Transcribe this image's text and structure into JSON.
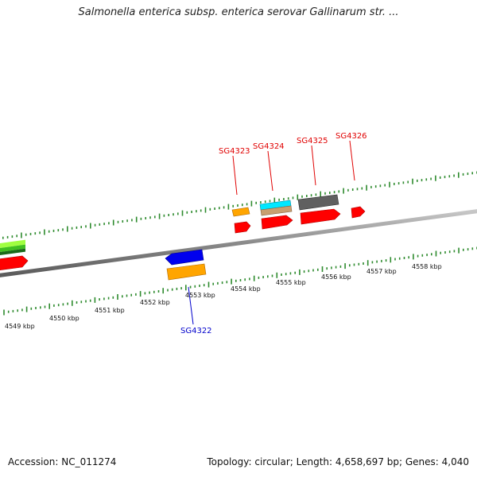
{
  "title": "Salmonella enterica subsp. enterica serovar Gallinarum str. ...",
  "accession": "Accession: NC_011274",
  "stats": "Topology: circular; Length: 4,658,697 bp; Genes: 4,040",
  "colors": {
    "backbone": "#8a8a8a",
    "tick": "#2e8b2e",
    "label_plus": "#e00000",
    "label_minus": "#0000cc"
  },
  "kbp_labels": [
    "4549 kbp",
    "4550 kbp",
    "4551 kbp",
    "4552 kbp",
    "4553 kbp",
    "4554 kbp",
    "4555 kbp",
    "4556 kbp",
    "4557 kbp",
    "4558 kbp"
  ],
  "gene_labels": [
    {
      "name": "SG4322",
      "strand": "minus"
    },
    {
      "name": "SG4323",
      "strand": "plus"
    },
    {
      "name": "SG4324",
      "strand": "plus"
    },
    {
      "name": "SG4325",
      "strand": "plus"
    },
    {
      "name": "SG4326",
      "strand": "plus"
    }
  ],
  "feature_colors": [
    "#ff0000",
    "#ffa500",
    "#00e0ff",
    "#c8a070",
    "#606060",
    "#0000ff",
    "#40c020",
    "#a0ff40"
  ]
}
